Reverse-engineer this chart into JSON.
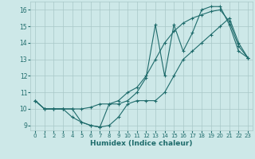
{
  "xlabel": "Humidex (Indice chaleur)",
  "xlim": [
    -0.5,
    23.5
  ],
  "ylim": [
    8.7,
    16.5
  ],
  "yticks": [
    9,
    10,
    11,
    12,
    13,
    14,
    15,
    16
  ],
  "xticks": [
    0,
    1,
    2,
    3,
    4,
    5,
    6,
    7,
    8,
    9,
    10,
    11,
    12,
    13,
    14,
    15,
    16,
    17,
    18,
    19,
    20,
    21,
    22,
    23
  ],
  "background_color": "#cde8e8",
  "grid_color": "#a8c8c8",
  "line_color": "#1e6b6b",
  "series": {
    "line_squiggly": [
      10.5,
      10.0,
      10.0,
      10.0,
      9.5,
      9.2,
      9.0,
      8.9,
      10.3,
      10.3,
      10.5,
      11.0,
      11.9,
      15.1,
      12.0,
      15.1,
      13.5,
      14.6,
      16.0,
      16.2,
      16.2,
      15.1,
      13.5,
      13.1
    ],
    "line_smooth": [
      10.5,
      10.0,
      10.0,
      10.0,
      10.0,
      10.0,
      10.1,
      10.3,
      10.3,
      10.5,
      11.0,
      11.3,
      12.0,
      13.0,
      14.0,
      14.7,
      15.2,
      15.5,
      15.7,
      15.9,
      16.0,
      15.3,
      13.8,
      13.1
    ],
    "line_lower": [
      10.5,
      10.0,
      10.0,
      10.0,
      10.0,
      9.2,
      9.0,
      8.9,
      9.0,
      9.5,
      10.3,
      10.5,
      10.5,
      10.5,
      11.0,
      12.0,
      13.0,
      13.5,
      14.0,
      14.5,
      15.0,
      15.5,
      14.0,
      13.1
    ]
  }
}
